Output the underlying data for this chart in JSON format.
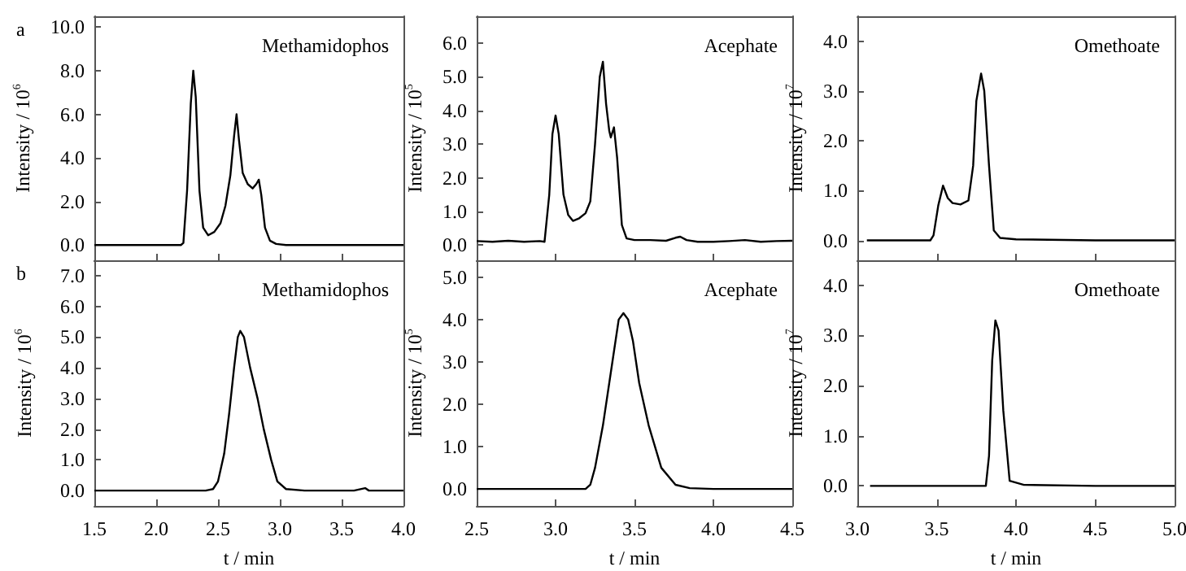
{
  "chart_data": [
    {
      "type": "line",
      "title": "Methamidophos",
      "ylabel": "Intensity / 10$^{6}$",
      "annotations": [
        "a"
      ],
      "tick_labels": "y",
      "grid": false,
      "marker": "none",
      "line_style": "solid",
      "xlim": [
        1.5,
        4.0
      ],
      "xticks": [
        1.5,
        2,
        2.5,
        3,
        3.5,
        4
      ],
      "ylim": [
        -0.7,
        10.5
      ],
      "yticks": [
        {
          "value": 0,
          "label": "0.0"
        },
        {
          "value": 2,
          "label": "2.0"
        },
        {
          "value": 4,
          "label": "4.0"
        },
        {
          "value": 6,
          "label": "6.0"
        },
        {
          "value": 8,
          "label": "8.0"
        },
        {
          "value": 10,
          "label": "10.0"
        }
      ],
      "series": [
        {
          "color": "#000000",
          "x": [
            1.5,
            2.0,
            2.2,
            2.22,
            2.25,
            2.28,
            2.3,
            2.32,
            2.35,
            2.38,
            2.42,
            2.47,
            2.52,
            2.56,
            2.6,
            2.63,
            2.65,
            2.67,
            2.7,
            2.74,
            2.78,
            2.81,
            2.83,
            2.85,
            2.88,
            2.92,
            2.97,
            3.05,
            3.5,
            4.0
          ],
          "values": [
            0,
            0,
            0,
            0.1,
            2.5,
            6.5,
            8.0,
            6.8,
            2.5,
            0.8,
            0.45,
            0.6,
            1.0,
            1.8,
            3.2,
            5.0,
            6.0,
            4.8,
            3.3,
            2.8,
            2.6,
            2.8,
            3.0,
            2.3,
            0.8,
            0.2,
            0.05,
            0,
            0,
            0
          ]
        }
      ]
    },
    {
      "type": "line",
      "title": "Acephate",
      "ylabel": "Intensity / 10$^{5}$",
      "tick_labels": "y",
      "grid": false,
      "marker": "none",
      "line_style": "solid",
      "xlim": [
        2.5,
        4.5
      ],
      "xticks": [
        2.5,
        3,
        3.5,
        4,
        4.5
      ],
      "ylim": [
        -0.45,
        6.8
      ],
      "yticks": [
        {
          "value": 0,
          "label": "0.0"
        },
        {
          "value": 1,
          "label": "1.0"
        },
        {
          "value": 2,
          "label": "2.0"
        },
        {
          "value": 3,
          "label": "3.0"
        },
        {
          "value": 4,
          "label": "4.0"
        },
        {
          "value": 5,
          "label": "5.0"
        },
        {
          "value": 6,
          "label": "6.0"
        }
      ],
      "series": [
        {
          "color": "#000000",
          "x": [
            2.5,
            2.6,
            2.7,
            2.8,
            2.9,
            2.93,
            2.96,
            2.98,
            3.0,
            3.02,
            3.05,
            3.08,
            3.11,
            3.15,
            3.19,
            3.22,
            3.25,
            3.28,
            3.3,
            3.32,
            3.34,
            3.35,
            3.37,
            3.39,
            3.42,
            3.45,
            3.5,
            3.6,
            3.7,
            3.76,
            3.79,
            3.83,
            3.9,
            4.0,
            4.1,
            4.2,
            4.3,
            4.4,
            4.5
          ],
          "values": [
            0.12,
            0.1,
            0.13,
            0.1,
            0.12,
            0.1,
            1.5,
            3.3,
            3.85,
            3.3,
            1.5,
            0.9,
            0.72,
            0.8,
            0.95,
            1.3,
            3.0,
            5.0,
            5.45,
            4.2,
            3.4,
            3.2,
            3.5,
            2.6,
            0.6,
            0.2,
            0.15,
            0.15,
            0.13,
            0.22,
            0.25,
            0.15,
            0.1,
            0.1,
            0.12,
            0.15,
            0.1,
            0.12,
            0.13
          ]
        }
      ]
    },
    {
      "type": "line",
      "title": "Omethoate",
      "ylabel": "Intensity / 10$^{7}$",
      "tick_labels": "y",
      "grid": false,
      "marker": "none",
      "line_style": "solid",
      "xlim": [
        3.0,
        5.0
      ],
      "xticks": [
        3,
        3.5,
        4,
        4.5,
        5
      ],
      "ylim": [
        -0.4,
        4.5
      ],
      "yticks": [
        {
          "value": 0,
          "label": "0.0"
        },
        {
          "value": 1,
          "label": "1.0"
        },
        {
          "value": 2,
          "label": "2.0"
        },
        {
          "value": 3,
          "label": "3.0"
        },
        {
          "value": 4,
          "label": "4.0"
        }
      ],
      "series": [
        {
          "color": "#000000",
          "x": [
            3.06,
            3.3,
            3.46,
            3.48,
            3.51,
            3.54,
            3.57,
            3.6,
            3.65,
            3.7,
            3.73,
            3.75,
            3.78,
            3.8,
            3.83,
            3.86,
            3.9,
            4.0,
            4.5,
            5.0
          ],
          "values": [
            0,
            0,
            0,
            0.1,
            0.7,
            1.1,
            0.85,
            0.75,
            0.72,
            0.8,
            1.5,
            2.8,
            3.35,
            3.0,
            1.5,
            0.2,
            0.05,
            0.02,
            0,
            0
          ]
        }
      ]
    },
    {
      "type": "line",
      "title": "Methamidophos",
      "xlabel": "t / min",
      "ylabel": "Intensity / 10$^{6}$",
      "annotations": [
        "b"
      ],
      "grid": false,
      "marker": "none",
      "line_style": "solid",
      "xlim": [
        1.5,
        4.0
      ],
      "xticks": [
        1.5,
        {
          "value": 2,
          "label": "2.0"
        },
        2.5,
        {
          "value": 3,
          "label": "3.0"
        },
        3.5,
        {
          "value": 4,
          "label": "4.0"
        }
      ],
      "ylim": [
        -0.5,
        7.5
      ],
      "yticks": [
        {
          "value": 0,
          "label": "0.0"
        },
        {
          "value": 1,
          "label": "1.0"
        },
        {
          "value": 2,
          "label": "2.0"
        },
        {
          "value": 3,
          "label": "3.0"
        },
        {
          "value": 4,
          "label": "4.0"
        },
        {
          "value": 5,
          "label": "5.0"
        },
        {
          "value": 6,
          "label": "6.0"
        },
        {
          "value": 7,
          "label": "7.0"
        }
      ],
      "series": [
        {
          "color": "#000000",
          "x": [
            1.5,
            2.0,
            2.4,
            2.46,
            2.5,
            2.55,
            2.59,
            2.63,
            2.66,
            2.68,
            2.71,
            2.76,
            2.82,
            2.87,
            2.93,
            2.98,
            3.05,
            3.2,
            3.6,
            3.69,
            3.72,
            4.0
          ],
          "values": [
            0,
            0,
            0,
            0.05,
            0.3,
            1.2,
            2.5,
            4.0,
            5.0,
            5.2,
            5.0,
            4.0,
            3.0,
            2.0,
            1.0,
            0.3,
            0.05,
            0,
            0,
            0.08,
            0,
            0
          ]
        }
      ]
    },
    {
      "type": "line",
      "title": "Acephate",
      "xlabel": "t / min",
      "ylabel": "Intensity / 10$^{5}$",
      "grid": false,
      "marker": "none",
      "line_style": "solid",
      "xlim": [
        2.5,
        4.5
      ],
      "xticks": [
        2.5,
        {
          "value": 3,
          "label": "3.0"
        },
        3.5,
        {
          "value": 4,
          "label": "4.0"
        },
        4.5
      ],
      "ylim": [
        -0.4,
        5.4
      ],
      "yticks": [
        {
          "value": 0,
          "label": "0.0"
        },
        {
          "value": 1,
          "label": "1.0"
        },
        {
          "value": 2,
          "label": "2.0"
        },
        {
          "value": 3,
          "label": "3.0"
        },
        {
          "value": 4,
          "label": "4.0"
        },
        {
          "value": 5,
          "label": "5.0"
        }
      ],
      "series": [
        {
          "color": "#000000",
          "x": [
            2.5,
            3.0,
            3.19,
            3.22,
            3.25,
            3.3,
            3.36,
            3.4,
            3.43,
            3.46,
            3.49,
            3.53,
            3.59,
            3.67,
            3.76,
            3.85,
            4.0,
            4.5
          ],
          "values": [
            0,
            0,
            0,
            0.1,
            0.5,
            1.5,
            3.0,
            4.0,
            4.15,
            4.0,
            3.5,
            2.5,
            1.5,
            0.5,
            0.1,
            0.02,
            0,
            0
          ]
        }
      ]
    },
    {
      "type": "line",
      "title": "Omethoate",
      "xlabel": "t / min",
      "ylabel": "Intensity / 10$^{7}$",
      "grid": false,
      "marker": "none",
      "line_style": "solid",
      "xlim": [
        3.0,
        5.0
      ],
      "xticks": [
        {
          "value": 3,
          "label": "3.0"
        },
        3.5,
        {
          "value": 4,
          "label": "4.0"
        },
        4.5,
        {
          "value": 5,
          "label": "5.0"
        }
      ],
      "ylim": [
        -0.4,
        4.5
      ],
      "yticks": [
        {
          "value": 0,
          "label": "0.0"
        },
        {
          "value": 1,
          "label": "1.0"
        },
        {
          "value": 2,
          "label": "2.0"
        },
        {
          "value": 3,
          "label": "3.0"
        },
        {
          "value": 4,
          "label": "4.0"
        }
      ],
      "series": [
        {
          "color": "#000000",
          "x": [
            3.08,
            3.5,
            3.81,
            3.83,
            3.85,
            3.87,
            3.89,
            3.92,
            3.96,
            4.05,
            4.5,
            5.0
          ],
          "values": [
            0,
            0,
            0,
            0.6,
            2.5,
            3.3,
            3.1,
            1.5,
            0.1,
            0.02,
            0,
            0
          ]
        }
      ]
    }
  ]
}
